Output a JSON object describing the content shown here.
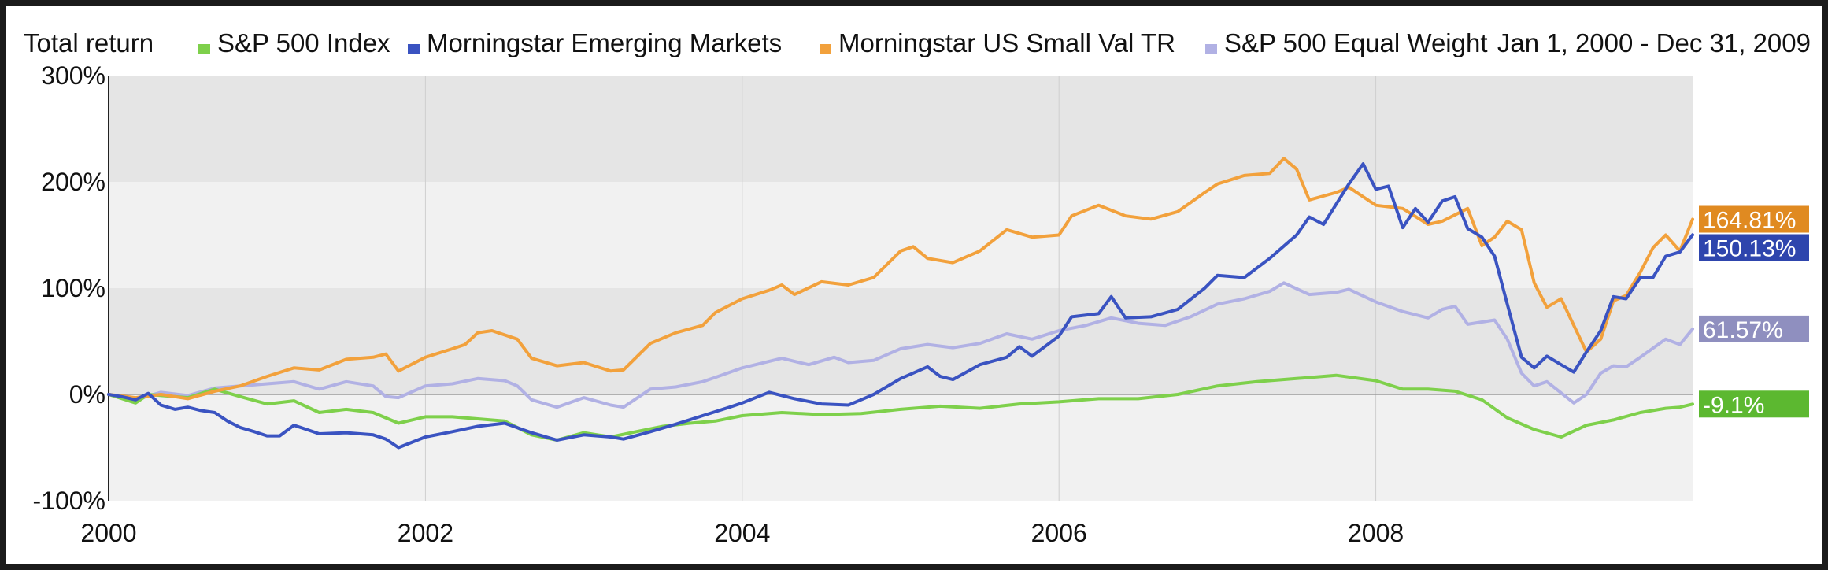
{
  "chart_data": {
    "type": "line",
    "title": "Total return",
    "date_range": "Jan 1, 2000 - Dec 31, 2009",
    "x_start": 2000,
    "x_end": 2010,
    "x_ticks": [
      2000,
      2002,
      2004,
      2006,
      2008
    ],
    "x_tick_labels": [
      "2000",
      "2002",
      "2004",
      "2006",
      "2008"
    ],
    "ylim": [
      -100,
      300
    ],
    "y_ticks": [
      -100,
      0,
      100,
      200,
      300
    ],
    "y_tick_labels": [
      "-100%",
      "0%",
      "100%",
      "200%",
      "300%"
    ],
    "grid": true,
    "legend_position": "top",
    "series": [
      {
        "name": "S&P 500 Index",
        "color": "#7ed04b",
        "end_label": "-9.1%",
        "label_color": "#5cb830",
        "points": [
          [
            2000.0,
            0
          ],
          [
            2000.17,
            -8
          ],
          [
            2000.25,
            0
          ],
          [
            2000.5,
            -3
          ],
          [
            2000.67,
            5
          ],
          [
            2000.83,
            -2
          ],
          [
            2001.0,
            -9
          ],
          [
            2001.17,
            -6
          ],
          [
            2001.33,
            -17
          ],
          [
            2001.5,
            -14
          ],
          [
            2001.67,
            -17
          ],
          [
            2001.83,
            -27
          ],
          [
            2002.0,
            -21
          ],
          [
            2002.17,
            -21
          ],
          [
            2002.33,
            -23
          ],
          [
            2002.5,
            -25
          ],
          [
            2002.67,
            -38
          ],
          [
            2002.83,
            -43
          ],
          [
            2003.0,
            -36
          ],
          [
            2003.17,
            -40
          ],
          [
            2003.33,
            -35
          ],
          [
            2003.5,
            -30
          ],
          [
            2003.67,
            -27
          ],
          [
            2003.83,
            -25
          ],
          [
            2004.0,
            -20
          ],
          [
            2004.25,
            -17
          ],
          [
            2004.5,
            -19
          ],
          [
            2004.75,
            -18
          ],
          [
            2005.0,
            -14
          ],
          [
            2005.25,
            -11
          ],
          [
            2005.5,
            -13
          ],
          [
            2005.75,
            -9
          ],
          [
            2006.0,
            -7
          ],
          [
            2006.25,
            -4
          ],
          [
            2006.5,
            -4
          ],
          [
            2006.75,
            0
          ],
          [
            2007.0,
            8
          ],
          [
            2007.25,
            12
          ],
          [
            2007.5,
            15
          ],
          [
            2007.75,
            18
          ],
          [
            2008.0,
            13
          ],
          [
            2008.17,
            5
          ],
          [
            2008.33,
            5
          ],
          [
            2008.5,
            3
          ],
          [
            2008.67,
            -5
          ],
          [
            2008.83,
            -22
          ],
          [
            2009.0,
            -33
          ],
          [
            2009.17,
            -40
          ],
          [
            2009.33,
            -29
          ],
          [
            2009.5,
            -24
          ],
          [
            2009.67,
            -17
          ],
          [
            2009.83,
            -13
          ],
          [
            2009.92,
            -12
          ],
          [
            2010.0,
            -9.1
          ]
        ]
      },
      {
        "name": "Morningstar Emerging Markets",
        "color": "#3a53c1",
        "end_label": "150.13%",
        "label_color": "#2e45ad",
        "points": [
          [
            2000.0,
            0
          ],
          [
            2000.08,
            -2
          ],
          [
            2000.17,
            -5
          ],
          [
            2000.25,
            1
          ],
          [
            2000.33,
            -10
          ],
          [
            2000.42,
            -14
          ],
          [
            2000.5,
            -12
          ],
          [
            2000.58,
            -15
          ],
          [
            2000.67,
            -17
          ],
          [
            2000.75,
            -25
          ],
          [
            2000.83,
            -31
          ],
          [
            2000.92,
            -35
          ],
          [
            2001.0,
            -39
          ],
          [
            2001.08,
            -39
          ],
          [
            2001.17,
            -29
          ],
          [
            2001.25,
            -33
          ],
          [
            2001.33,
            -37
          ],
          [
            2001.5,
            -36
          ],
          [
            2001.67,
            -38
          ],
          [
            2001.75,
            -42
          ],
          [
            2001.83,
            -50
          ],
          [
            2002.0,
            -40
          ],
          [
            2002.17,
            -35
          ],
          [
            2002.33,
            -30
          ],
          [
            2002.5,
            -27
          ],
          [
            2002.67,
            -36
          ],
          [
            2002.83,
            -43
          ],
          [
            2003.0,
            -38
          ],
          [
            2003.17,
            -40
          ],
          [
            2003.25,
            -42
          ],
          [
            2003.42,
            -35
          ],
          [
            2003.58,
            -28
          ],
          [
            2003.75,
            -20
          ],
          [
            2003.92,
            -12
          ],
          [
            2004.0,
            -8
          ],
          [
            2004.17,
            2
          ],
          [
            2004.33,
            -4
          ],
          [
            2004.5,
            -9
          ],
          [
            2004.67,
            -10
          ],
          [
            2004.75,
            -5
          ],
          [
            2004.83,
            0
          ],
          [
            2005.0,
            15
          ],
          [
            2005.17,
            26
          ],
          [
            2005.25,
            17
          ],
          [
            2005.33,
            14
          ],
          [
            2005.5,
            28
          ],
          [
            2005.67,
            35
          ],
          [
            2005.75,
            45
          ],
          [
            2005.83,
            36
          ],
          [
            2006.0,
            55
          ],
          [
            2006.08,
            73
          ],
          [
            2006.25,
            76
          ],
          [
            2006.33,
            92
          ],
          [
            2006.42,
            72
          ],
          [
            2006.58,
            73
          ],
          [
            2006.75,
            80
          ],
          [
            2006.92,
            100
          ],
          [
            2007.0,
            112
          ],
          [
            2007.17,
            110
          ],
          [
            2007.33,
            128
          ],
          [
            2007.5,
            150
          ],
          [
            2007.58,
            167
          ],
          [
            2007.67,
            160
          ],
          [
            2007.83,
            198
          ],
          [
            2007.92,
            217
          ],
          [
            2008.0,
            193
          ],
          [
            2008.08,
            196
          ],
          [
            2008.17,
            157
          ],
          [
            2008.25,
            175
          ],
          [
            2008.33,
            162
          ],
          [
            2008.42,
            182
          ],
          [
            2008.5,
            186
          ],
          [
            2008.58,
            156
          ],
          [
            2008.67,
            148
          ],
          [
            2008.75,
            130
          ],
          [
            2008.83,
            85
          ],
          [
            2008.92,
            35
          ],
          [
            2009.0,
            25
          ],
          [
            2009.08,
            36
          ],
          [
            2009.17,
            28
          ],
          [
            2009.25,
            21
          ],
          [
            2009.33,
            40
          ],
          [
            2009.42,
            60
          ],
          [
            2009.5,
            92
          ],
          [
            2009.58,
            90
          ],
          [
            2009.67,
            110
          ],
          [
            2009.75,
            110
          ],
          [
            2009.83,
            130
          ],
          [
            2009.92,
            134
          ],
          [
            2010.0,
            150.13
          ]
        ]
      },
      {
        "name": "Morningstar US Small Val TR",
        "color": "#f2a13c",
        "end_label": "164.81%",
        "label_color": "#e08a21",
        "points": [
          [
            2000.0,
            0
          ],
          [
            2000.17,
            -3
          ],
          [
            2000.33,
            0
          ],
          [
            2000.5,
            -4
          ],
          [
            2000.67,
            3
          ],
          [
            2000.83,
            8
          ],
          [
            2001.0,
            17
          ],
          [
            2001.17,
            25
          ],
          [
            2001.33,
            23
          ],
          [
            2001.5,
            33
          ],
          [
            2001.67,
            35
          ],
          [
            2001.75,
            38
          ],
          [
            2001.83,
            22
          ],
          [
            2002.0,
            35
          ],
          [
            2002.17,
            43
          ],
          [
            2002.25,
            47
          ],
          [
            2002.33,
            58
          ],
          [
            2002.42,
            60
          ],
          [
            2002.58,
            52
          ],
          [
            2002.67,
            34
          ],
          [
            2002.83,
            27
          ],
          [
            2003.0,
            30
          ],
          [
            2003.17,
            22
          ],
          [
            2003.25,
            23
          ],
          [
            2003.42,
            48
          ],
          [
            2003.58,
            58
          ],
          [
            2003.75,
            65
          ],
          [
            2003.83,
            77
          ],
          [
            2004.0,
            90
          ],
          [
            2004.17,
            98
          ],
          [
            2004.25,
            103
          ],
          [
            2004.33,
            94
          ],
          [
            2004.5,
            106
          ],
          [
            2004.67,
            103
          ],
          [
            2004.83,
            110
          ],
          [
            2005.0,
            135
          ],
          [
            2005.08,
            139
          ],
          [
            2005.17,
            128
          ],
          [
            2005.33,
            124
          ],
          [
            2005.5,
            135
          ],
          [
            2005.67,
            155
          ],
          [
            2005.83,
            148
          ],
          [
            2006.0,
            150
          ],
          [
            2006.08,
            168
          ],
          [
            2006.25,
            178
          ],
          [
            2006.42,
            168
          ],
          [
            2006.58,
            165
          ],
          [
            2006.75,
            172
          ],
          [
            2006.92,
            190
          ],
          [
            2007.0,
            198
          ],
          [
            2007.17,
            206
          ],
          [
            2007.33,
            208
          ],
          [
            2007.42,
            222
          ],
          [
            2007.5,
            212
          ],
          [
            2007.58,
            183
          ],
          [
            2007.75,
            190
          ],
          [
            2007.83,
            195
          ],
          [
            2008.0,
            178
          ],
          [
            2008.17,
            175
          ],
          [
            2008.33,
            160
          ],
          [
            2008.42,
            163
          ],
          [
            2008.58,
            175
          ],
          [
            2008.67,
            140
          ],
          [
            2008.75,
            148
          ],
          [
            2008.83,
            163
          ],
          [
            2008.92,
            155
          ],
          [
            2009.0,
            105
          ],
          [
            2009.08,
            82
          ],
          [
            2009.17,
            90
          ],
          [
            2009.33,
            40
          ],
          [
            2009.42,
            52
          ],
          [
            2009.5,
            88
          ],
          [
            2009.58,
            93
          ],
          [
            2009.67,
            115
          ],
          [
            2009.75,
            138
          ],
          [
            2009.83,
            150
          ],
          [
            2009.92,
            135
          ],
          [
            2010.0,
            164.81
          ]
        ]
      },
      {
        "name": "S&P 500 Equal Weight",
        "color": "#b1b1e4",
        "end_label": "61.57%",
        "label_color": "#8f8fbf",
        "points": [
          [
            2000.0,
            0
          ],
          [
            2000.17,
            -5
          ],
          [
            2000.33,
            2
          ],
          [
            2000.5,
            -1
          ],
          [
            2000.67,
            6
          ],
          [
            2000.83,
            8
          ],
          [
            2001.0,
            10
          ],
          [
            2001.17,
            12
          ],
          [
            2001.33,
            5
          ],
          [
            2001.5,
            12
          ],
          [
            2001.67,
            8
          ],
          [
            2001.75,
            -2
          ],
          [
            2001.83,
            -3
          ],
          [
            2002.0,
            8
          ],
          [
            2002.17,
            10
          ],
          [
            2002.33,
            15
          ],
          [
            2002.5,
            13
          ],
          [
            2002.58,
            8
          ],
          [
            2002.67,
            -5
          ],
          [
            2002.83,
            -12
          ],
          [
            2003.0,
            -3
          ],
          [
            2003.17,
            -10
          ],
          [
            2003.25,
            -12
          ],
          [
            2003.42,
            5
          ],
          [
            2003.58,
            7
          ],
          [
            2003.75,
            12
          ],
          [
            2003.83,
            16
          ],
          [
            2004.0,
            25
          ],
          [
            2004.25,
            34
          ],
          [
            2004.42,
            28
          ],
          [
            2004.58,
            35
          ],
          [
            2004.67,
            30
          ],
          [
            2004.83,
            32
          ],
          [
            2005.0,
            43
          ],
          [
            2005.17,
            47
          ],
          [
            2005.33,
            44
          ],
          [
            2005.5,
            48
          ],
          [
            2005.67,
            57
          ],
          [
            2005.83,
            52
          ],
          [
            2006.0,
            60
          ],
          [
            2006.17,
            65
          ],
          [
            2006.33,
            72
          ],
          [
            2006.5,
            67
          ],
          [
            2006.67,
            65
          ],
          [
            2006.83,
            73
          ],
          [
            2007.0,
            85
          ],
          [
            2007.17,
            90
          ],
          [
            2007.33,
            97
          ],
          [
            2007.42,
            105
          ],
          [
            2007.58,
            94
          ],
          [
            2007.75,
            96
          ],
          [
            2007.83,
            99
          ],
          [
            2008.0,
            87
          ],
          [
            2008.17,
            78
          ],
          [
            2008.33,
            72
          ],
          [
            2008.42,
            80
          ],
          [
            2008.5,
            83
          ],
          [
            2008.58,
            66
          ],
          [
            2008.75,
            70
          ],
          [
            2008.83,
            52
          ],
          [
            2008.92,
            20
          ],
          [
            2009.0,
            8
          ],
          [
            2009.08,
            12
          ],
          [
            2009.25,
            -8
          ],
          [
            2009.33,
            0
          ],
          [
            2009.42,
            20
          ],
          [
            2009.5,
            27
          ],
          [
            2009.58,
            26
          ],
          [
            2009.67,
            35
          ],
          [
            2009.83,
            52
          ],
          [
            2009.92,
            47
          ],
          [
            2010.0,
            61.57
          ]
        ]
      }
    ]
  }
}
